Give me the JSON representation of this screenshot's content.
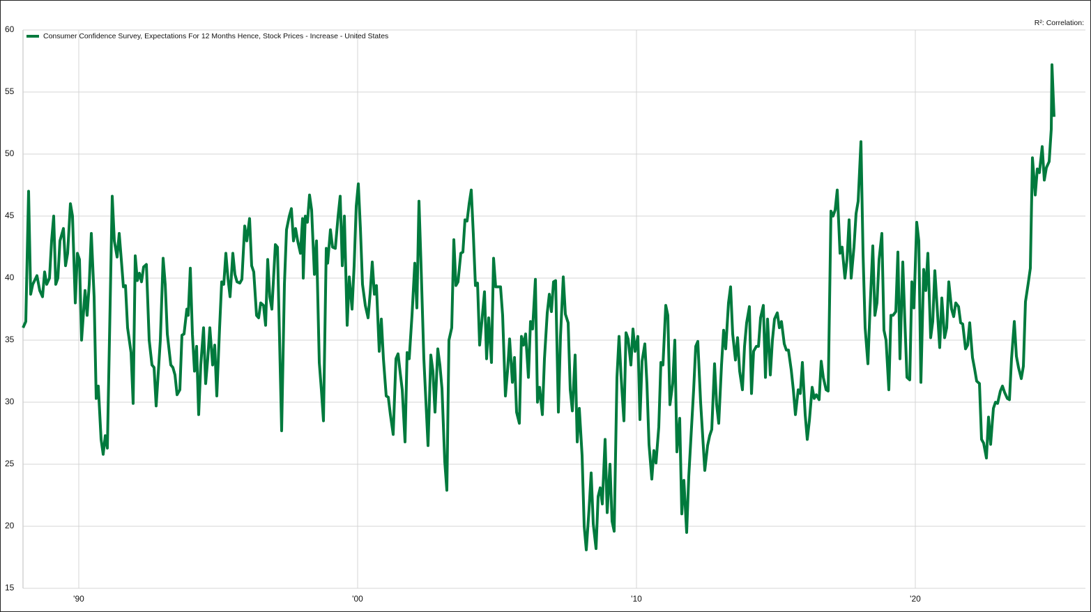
{
  "chart_data": {
    "type": "line",
    "annotation": "R²:  Correlation:",
    "x": [
      1988.0,
      1988.1,
      1988.2,
      1988.275,
      1988.35,
      1988.5,
      1988.6,
      1988.7,
      1988.775,
      1988.85,
      1988.95,
      1989.025,
      1989.1,
      1989.175,
      1989.25,
      1989.325,
      1989.45,
      1989.525,
      1989.6,
      1989.7,
      1989.775,
      1989.875,
      1989.95,
      1990.025,
      1990.1,
      1990.225,
      1990.3,
      1990.375,
      1990.45,
      1990.55,
      1990.625,
      1990.7,
      1990.8,
      1990.875,
      1990.95,
      1991.025,
      1991.2,
      1991.275,
      1991.375,
      1991.45,
      1991.525,
      1991.6,
      1991.675,
      1991.75,
      1991.875,
      1991.95,
      1992.025,
      1992.1,
      1992.175,
      1992.25,
      1992.325,
      1992.425,
      1992.525,
      1992.625,
      1992.7,
      1992.775,
      1992.925,
      1993.025,
      1993.1,
      1993.175,
      1993.3,
      1993.375,
      1993.45,
      1993.525,
      1993.625,
      1993.7,
      1993.775,
      1993.875,
      1993.925,
      1994.0,
      1994.075,
      1994.15,
      1994.225,
      1994.3,
      1994.375,
      1994.475,
      1994.55,
      1994.625,
      1994.7,
      1994.8,
      1994.875,
      1994.95,
      1995.05,
      1995.125,
      1995.2,
      1995.275,
      1995.35,
      1995.425,
      1995.525,
      1995.6,
      1995.675,
      1995.775,
      1995.85,
      1995.95,
      1996.025,
      1996.125,
      1996.2,
      1996.275,
      1996.375,
      1996.45,
      1996.525,
      1996.625,
      1996.7,
      1996.775,
      1996.85,
      1996.925,
      1997.05,
      1997.125,
      1997.275,
      1997.375,
      1997.45,
      1997.55,
      1997.625,
      1997.7,
      1997.775,
      1997.85,
      1997.95,
      1998.025,
      1998.05,
      1998.125,
      1998.2,
      1998.275,
      1998.35,
      1998.45,
      1998.525,
      1998.625,
      1998.7,
      1998.775,
      1998.875,
      1998.925,
      1999.025,
      1999.1,
      1999.2,
      1999.3,
      1999.375,
      1999.45,
      1999.525,
      1999.625,
      1999.7,
      1999.8,
      1999.875,
      1999.95,
      2000.025,
      2000.1,
      2000.175,
      2000.275,
      2000.375,
      2000.45,
      2000.525,
      2000.6,
      2000.675,
      2000.775,
      2000.85,
      2000.925,
      2001.025,
      2001.1,
      2001.175,
      2001.275,
      2001.375,
      2001.45,
      2001.525,
      2001.6,
      2001.7,
      2001.775,
      2001.85,
      2001.95,
      2002.05,
      2002.125,
      2002.2,
      2002.275,
      2002.375,
      2002.45,
      2002.525,
      2002.625,
      2002.7,
      2002.775,
      2002.875,
      2002.95,
      2003.025,
      2003.125,
      2003.2,
      2003.275,
      2003.375,
      2003.45,
      2003.525,
      2003.6,
      2003.7,
      2003.775,
      2003.85,
      2003.925,
      2004.0,
      2004.075,
      2004.15,
      2004.225,
      2004.3,
      2004.375,
      2004.45,
      2004.55,
      2004.625,
      2004.7,
      2004.8,
      2004.875,
      2004.95,
      2005.025,
      2005.125,
      2005.2,
      2005.3,
      2005.375,
      2005.45,
      2005.55,
      2005.625,
      2005.7,
      2005.8,
      2005.875,
      2005.95,
      2006.025,
      2006.125,
      2006.2,
      2006.275,
      2006.375,
      2006.45,
      2006.525,
      2006.625,
      2006.7,
      2006.8,
      2006.875,
      2006.95,
      2007.025,
      2007.1,
      2007.2,
      2007.275,
      2007.375,
      2007.45,
      2007.55,
      2007.625,
      2007.7,
      2007.8,
      2007.875,
      2007.95,
      2008.05,
      2008.125,
      2008.2,
      2008.3,
      2008.375,
      2008.45,
      2008.55,
      2008.625,
      2008.7,
      2008.775,
      2008.875,
      2008.95,
      2009.05,
      2009.125,
      2009.2,
      2009.3,
      2009.375,
      2009.45,
      2009.55,
      2009.625,
      2009.7,
      2009.8,
      2009.875,
      2009.95,
      2010.05,
      2010.125,
      2010.2,
      2010.3,
      2010.375,
      2010.45,
      2010.55,
      2010.625,
      2010.7,
      2010.8,
      2010.875,
      2010.95,
      2011.05,
      2011.125,
      2011.2,
      2011.3,
      2011.375,
      2011.45,
      2011.55,
      2011.625,
      2011.7,
      2011.8,
      2011.875,
      2011.95,
      2012.05,
      2012.125,
      2012.2,
      2012.3,
      2012.45,
      2012.55,
      2012.625,
      2012.7,
      2012.8,
      2012.875,
      2012.95,
      2013.05,
      2013.125,
      2013.2,
      2013.3,
      2013.375,
      2013.45,
      2013.55,
      2013.625,
      2013.7,
      2013.8,
      2013.875,
      2013.95,
      2014.05,
      2014.125,
      2014.2,
      2014.3,
      2014.375,
      2014.45,
      2014.55,
      2014.625,
      2014.7,
      2014.8,
      2014.875,
      2014.95,
      2015.05,
      2015.125,
      2015.2,
      2015.3,
      2015.375,
      2015.45,
      2015.55,
      2015.625,
      2015.7,
      2015.8,
      2015.875,
      2015.95,
      2016.05,
      2016.125,
      2016.2,
      2016.3,
      2016.375,
      2016.45,
      2016.55,
      2016.625,
      2016.7,
      2016.8,
      2016.875,
      2016.975,
      2017.05,
      2017.125,
      2017.2,
      2017.3,
      2017.375,
      2017.475,
      2017.55,
      2017.625,
      2017.7,
      2017.8,
      2017.875,
      2017.95,
      2018.05,
      2018.125,
      2018.2,
      2018.3,
      2018.375,
      2018.475,
      2018.55,
      2018.625,
      2018.7,
      2018.8,
      2018.875,
      2018.95,
      2019.05,
      2019.125,
      2019.2,
      2019.3,
      2019.375,
      2019.45,
      2019.55,
      2019.625,
      2019.7,
      2019.8,
      2019.875,
      2019.95,
      2020.05,
      2020.125,
      2020.2,
      2020.3,
      2020.375,
      2020.45,
      2020.55,
      2020.625,
      2020.7,
      2020.8,
      2020.875,
      2020.95,
      2021.05,
      2021.125,
      2021.2,
      2021.3,
      2021.375,
      2021.45,
      2021.55,
      2021.625,
      2021.7,
      2021.8,
      2021.875,
      2021.95,
      2022.05,
      2022.125,
      2022.2,
      2022.3,
      2022.375,
      2022.45,
      2022.55,
      2022.625,
      2022.7,
      2022.8,
      2022.875,
      2022.95,
      2023.05,
      2023.125,
      2023.2,
      2023.3,
      2023.375,
      2023.45,
      2023.55,
      2023.625,
      2023.7,
      2023.8,
      2023.875,
      2023.95,
      2024.05,
      2024.125,
      2024.2,
      2024.3,
      2024.375,
      2024.45,
      2024.55,
      2024.625,
      2024.7,
      2024.8,
      2024.875,
      2024.9,
      2024.975
    ],
    "series": [
      {
        "name": "Consumer Confidence Survey, Expectations For 12 Months Hence, Stock Prices - Increase - United States",
        "color": "#007a3d",
        "values": [
          36,
          36.5,
          47,
          38.7,
          39.5,
          40.2,
          39,
          38.5,
          40.5,
          39.5,
          40,
          43,
          45,
          39.5,
          40,
          43,
          44,
          41,
          42,
          46,
          45,
          38,
          42,
          41.5,
          35,
          39,
          37,
          39.5,
          43.6,
          38.5,
          30.3,
          31.3,
          27,
          25.8,
          27.3,
          26.3,
          46.6,
          43,
          41.7,
          43.6,
          41.5,
          39.3,
          39.4,
          36,
          34,
          29.9,
          41.8,
          39.8,
          40.4,
          39.7,
          40.9,
          41.1,
          35,
          33,
          32.8,
          29.7,
          35,
          41.6,
          39.5,
          35.5,
          33,
          32.8,
          32.2,
          30.6,
          31,
          35.4,
          35.5,
          37.5,
          37,
          40.8,
          35.5,
          32.5,
          34.5,
          29,
          33,
          36,
          31.5,
          33.5,
          36,
          33,
          34.6,
          30.5,
          36,
          39.7,
          39.5,
          42,
          40,
          38.5,
          42,
          40.3,
          39.7,
          39.6,
          39.9,
          44.2,
          43,
          44.8,
          41,
          40.5,
          37,
          36.8,
          38,
          37.8,
          36.2,
          41.5,
          38.5,
          37.5,
          42.7,
          42.5,
          27.7,
          39.5,
          43.9,
          45,
          45.6,
          43,
          44,
          43,
          42,
          44.8,
          40,
          45,
          44.5,
          46.7,
          45.5,
          40.3,
          43,
          33.2,
          31,
          28.5,
          42.4,
          41.2,
          43.9,
          42.5,
          42.4,
          45,
          46.6,
          41,
          45,
          36.2,
          40.1,
          37.5,
          41,
          45.8,
          47.6,
          44,
          39.5,
          37.8,
          36.8,
          38.8,
          41.3,
          38.7,
          39.4,
          34.1,
          36.7,
          33.5,
          30.5,
          30.4,
          29,
          27.4,
          33.5,
          33.9,
          32.4,
          31,
          26.8,
          34,
          33.5,
          37,
          41.2,
          37.6,
          46.2,
          41,
          33.5,
          30,
          26.5,
          33.8,
          32.5,
          29.2,
          34.3,
          33,
          31.1,
          25.2,
          22.9,
          35,
          36,
          43.1,
          39.4,
          39.7,
          42,
          42.1,
          44.7,
          44.6,
          46,
          47.1,
          43.5,
          39.4,
          39.6,
          34.6,
          36.4,
          38.9,
          33.5,
          36.8,
          33.2,
          41.6,
          39.3,
          39.3,
          39.3,
          37,
          30.5,
          32.5,
          35.1,
          31.6,
          33.6,
          29.2,
          28.3,
          35.3,
          34.6,
          35.5,
          32,
          36.5,
          35.9,
          39.9,
          30,
          31.2,
          29,
          33.5,
          37.2,
          38.7,
          37.3,
          39.7,
          39.8,
          29.2,
          35.3,
          40.1,
          37.1,
          36.4,
          31,
          29.3,
          33.8,
          26.8,
          29.5,
          25.7,
          20,
          18.1,
          21.4,
          24.3,
          20.2,
          18.2,
          22.4,
          23.1,
          21.8,
          27,
          21.1,
          25,
          20.4,
          19.6,
          32,
          35.3,
          32,
          28.5,
          35.6,
          35.1,
          33,
          35.9,
          34.1,
          35.3,
          28.6,
          33.3,
          34.7,
          31.5,
          26.6,
          23.8,
          26.1,
          25.1,
          28,
          33.2,
          33,
          37.8,
          37,
          29.8,
          31.5,
          35,
          26,
          28.7,
          21,
          23.7,
          19.5,
          24,
          27,
          31,
          34.5,
          34.9,
          30,
          24.5,
          26.5,
          27.3,
          27.8,
          33.1,
          29.8,
          28.3,
          33,
          35.8,
          34.3,
          38,
          39.3,
          35.5,
          33.4,
          35.2,
          32.5,
          31,
          34.5,
          36.4,
          37.7,
          30.7,
          34.1,
          34.5,
          34.5,
          36.8,
          37.8,
          32,
          36.7,
          32.2,
          35,
          36.7,
          37.2,
          36,
          36.5,
          34.7,
          34.2,
          34.2,
          32.6,
          31,
          29,
          31,
          30.7,
          33.2,
          29,
          27,
          28.5,
          31.2,
          30.3,
          30.6,
          30.2,
          33.3,
          32,
          31,
          30.9,
          45.4,
          45,
          45.5,
          47.1,
          42,
          42.5,
          40,
          41.5,
          44.7,
          40,
          42.5,
          45.2,
          46.2,
          51,
          42,
          36,
          33.1,
          37.5,
          42.6,
          37,
          38,
          41.5,
          43.6,
          35.8,
          35,
          31,
          37,
          37,
          37.3,
          42.1,
          33.5,
          41.3,
          36.5,
          32,
          31.8,
          39.7,
          37.6,
          44.5,
          43,
          31.6,
          40.7,
          39,
          42,
          35.2,
          36.5,
          40.6,
          37,
          34.4,
          38.4,
          35.2,
          36,
          39.7,
          37.5,
          36.9,
          38,
          37.7,
          36.4,
          36.3,
          34.3,
          34.6,
          36.4,
          33.6,
          32.7,
          31.7,
          31.5,
          27,
          26.7,
          25.5,
          28.8,
          26.6,
          29.5,
          30,
          29.9,
          30.9,
          31.3,
          30.8,
          30.3,
          30.2,
          33.5,
          36.5,
          33.7,
          32.8,
          31.9,
          32.9,
          38.1,
          39.6,
          40.8,
          49.7,
          46.7,
          48.8,
          48.5,
          50.6,
          47.9,
          48.9,
          49.4,
          52,
          57.2,
          53
        ]
      }
    ],
    "xlim": [
      1988.0,
      2026.1
    ],
    "xticks": [
      {
        "value": 1990,
        "label": "'90"
      },
      {
        "value": 2000,
        "label": "'00"
      },
      {
        "value": 2010,
        "label": "'10"
      },
      {
        "value": 2020,
        "label": "'20"
      }
    ],
    "ylim": [
      15,
      60
    ],
    "yticks": [
      15,
      20,
      25,
      30,
      35,
      40,
      45,
      50,
      55,
      60
    ],
    "grid": true,
    "legend": "top-left"
  }
}
